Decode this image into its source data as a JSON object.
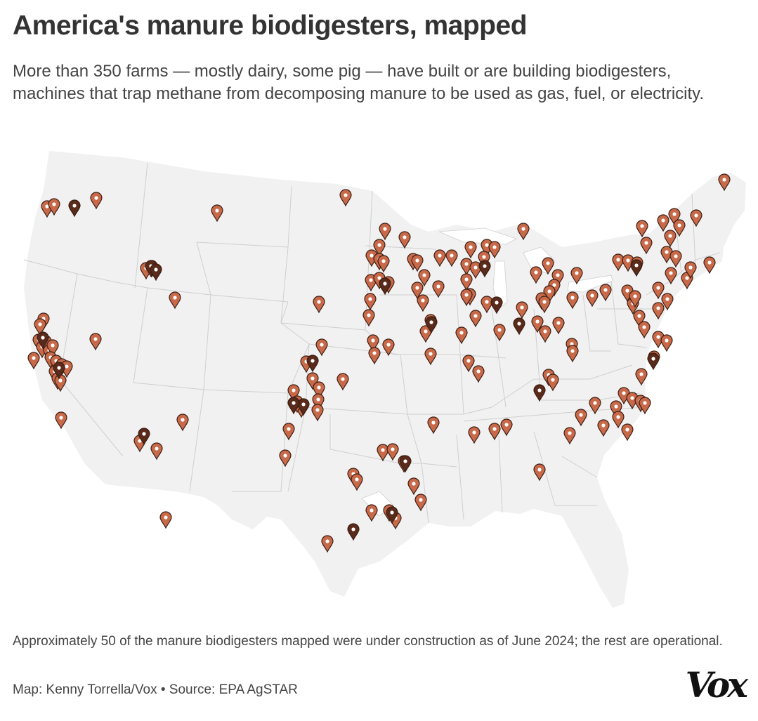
{
  "header": {
    "title": "America's manure biodigesters, mapped",
    "subtitle": "More than 350 farms — mostly dairy, some pig — have built or are building biodigesters, machines that trap methane from decomposing manure to be used as gas, fuel, or electricity."
  },
  "footer": {
    "note": "Approximately 50 of the manure biodigesters mapped were under construction as of June 2024; the rest are operational.",
    "credit": "Map: Kenny Torrella/Vox • Source: EPA AgSTAR",
    "logo": "Vox"
  },
  "map": {
    "land_color": "#f1f1f1",
    "border_color": "#cfcfcf",
    "water_color": "#ffffff",
    "marker_operational_color": "#c86a4a",
    "marker_construction_color": "#5a2a1a",
    "marker_outline_color": "#3b1d12"
  }
}
